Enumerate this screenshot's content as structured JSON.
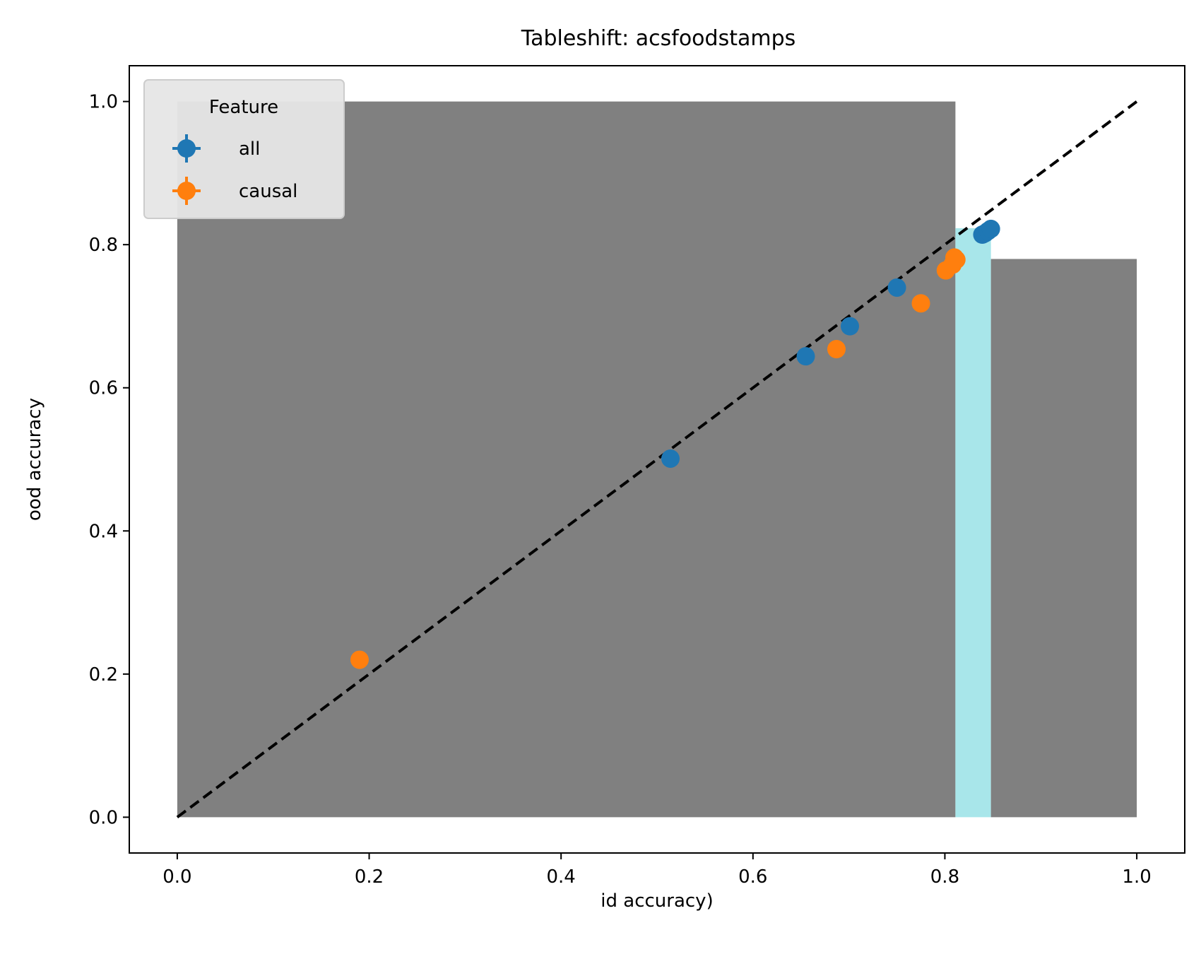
{
  "chart_data": {
    "type": "scatter",
    "title": "Tableshift: acsfoodstamps",
    "xlabel": "id accuracy)",
    "ylabel": "ood accuracy",
    "xlim": [
      -0.05,
      1.05
    ],
    "ylim": [
      -0.05,
      1.05
    ],
    "xticks": [
      0.0,
      0.2,
      0.4,
      0.6,
      0.8,
      1.0
    ],
    "yticks": [
      0.0,
      0.2,
      0.4,
      0.6,
      0.8,
      1.0
    ],
    "xtick_labels": [
      "0.0",
      "0.2",
      "0.4",
      "0.6",
      "0.8",
      "1.0"
    ],
    "ytick_labels": [
      "0.0",
      "0.2",
      "0.4",
      "0.6",
      "0.8",
      "1.0"
    ],
    "grid": false,
    "legend": {
      "title": "Feature",
      "placement": "top-left"
    },
    "diagonal": {
      "x": [
        0,
        1
      ],
      "y": [
        0,
        1
      ],
      "style": "dashed",
      "color": "#000000"
    },
    "shaded_regions": [
      {
        "x": [
          0.0,
          0.811
        ],
        "y": [
          0.0,
          1.0
        ],
        "color": "#808080"
      },
      {
        "x": [
          0.811,
          0.848
        ],
        "y": [
          0.0,
          0.823
        ],
        "color": "#a8e6ea"
      },
      {
        "x": [
          0.848,
          1.0
        ],
        "y": [
          0.0,
          0.78
        ],
        "color": "#808080"
      }
    ],
    "series": [
      {
        "name": "all",
        "color": "#1f77b4",
        "points": [
          {
            "x": 0.514,
            "y": 0.501
          },
          {
            "x": 0.655,
            "y": 0.644
          },
          {
            "x": 0.701,
            "y": 0.686
          },
          {
            "x": 0.75,
            "y": 0.74
          },
          {
            "x": 0.839,
            "y": 0.814
          },
          {
            "x": 0.842,
            "y": 0.816
          },
          {
            "x": 0.845,
            "y": 0.819
          },
          {
            "x": 0.848,
            "y": 0.822
          }
        ]
      },
      {
        "name": "causal",
        "color": "#ff7f0e",
        "points": [
          {
            "x": 0.19,
            "y": 0.22
          },
          {
            "x": 0.687,
            "y": 0.654
          },
          {
            "x": 0.775,
            "y": 0.718
          },
          {
            "x": 0.801,
            "y": 0.764
          },
          {
            "x": 0.808,
            "y": 0.772
          },
          {
            "x": 0.812,
            "y": 0.779
          },
          {
            "x": 0.81,
            "y": 0.782
          }
        ]
      }
    ]
  }
}
